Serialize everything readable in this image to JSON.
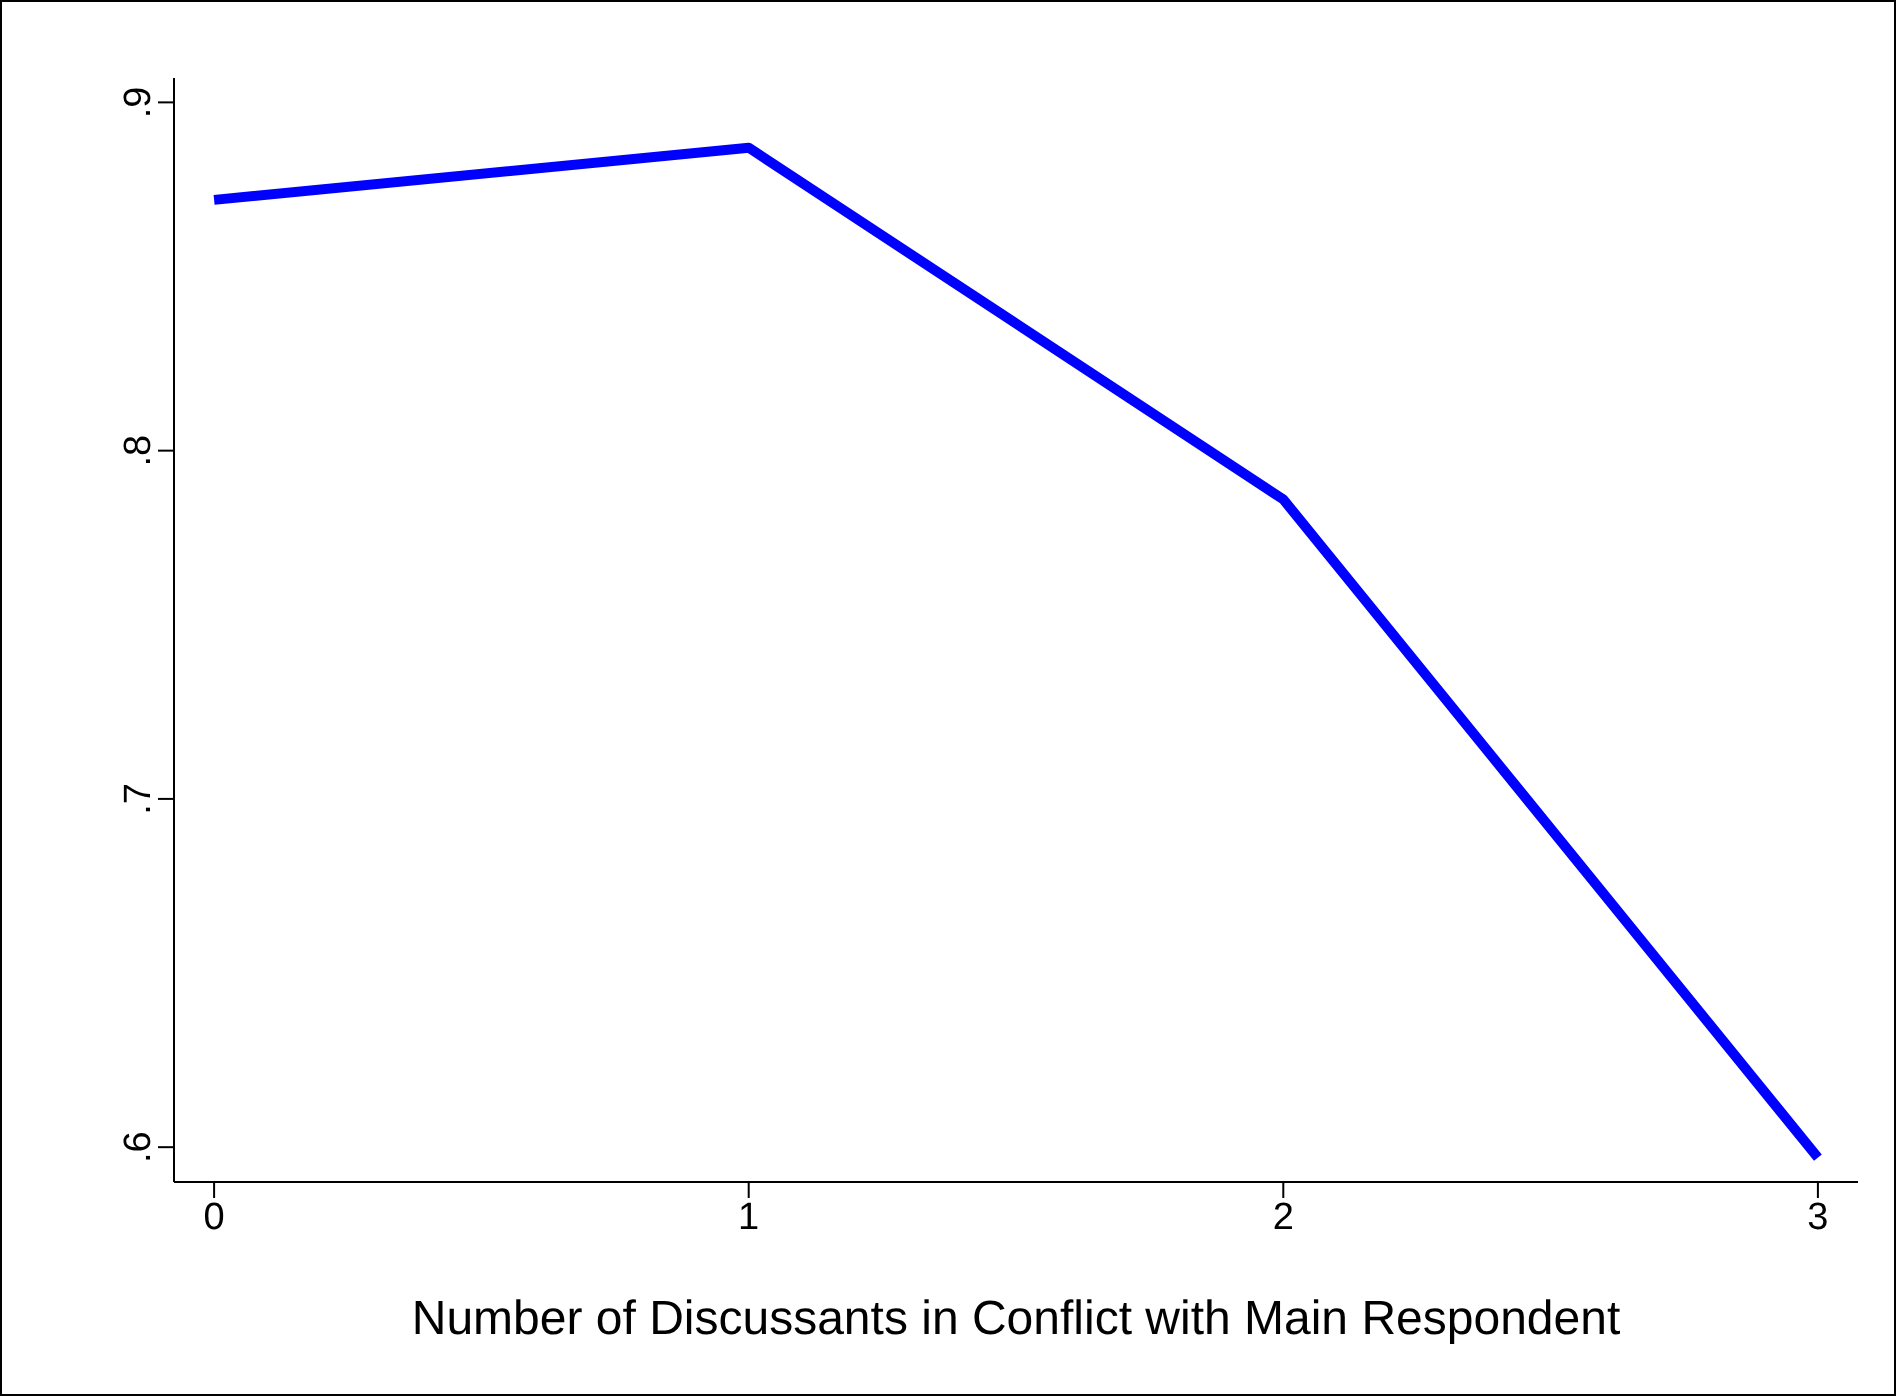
{
  "chart_data": {
    "type": "line",
    "xlabel": "Number of Discussants in Conflict with Main Respondent",
    "x": [
      0,
      1,
      2,
      3
    ],
    "series": [
      {
        "color": "#0000ff",
        "values": [
          0.872,
          0.887,
          0.786,
          0.597
        ]
      }
    ],
    "xlim": [
      -0.075,
      3.075
    ],
    "xticks": [
      0,
      1,
      2,
      3
    ],
    "ylim": [
      0.59,
      0.907
    ],
    "yticks": [
      {
        "value": 0.6,
        "label": ".6"
      },
      {
        "value": 0.7,
        "label": ".7"
      },
      {
        "value": 0.8,
        "label": ".8"
      },
      {
        "value": 0.9,
        "label": ".9"
      }
    ],
    "grid": false,
    "legend": false,
    "marker": "none",
    "line_style": "solid"
  }
}
